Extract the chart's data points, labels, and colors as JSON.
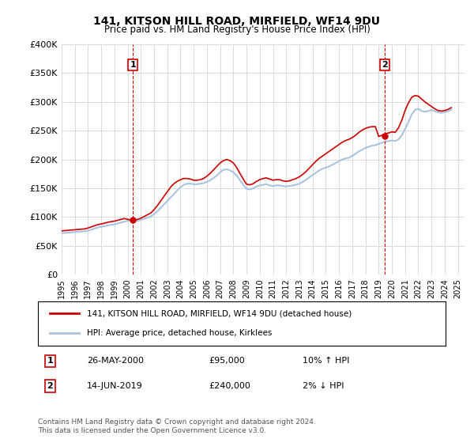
{
  "title1": "141, KITSON HILL ROAD, MIRFIELD, WF14 9DU",
  "title2": "Price paid vs. HM Land Registry's House Price Index (HPI)",
  "ylabel_ticks": [
    "£0",
    "£50K",
    "£100K",
    "£150K",
    "£200K",
    "£250K",
    "£300K",
    "£350K",
    "£400K"
  ],
  "ytick_vals": [
    0,
    50000,
    100000,
    150000,
    200000,
    250000,
    300000,
    350000,
    400000
  ],
  "ylim": [
    0,
    400000
  ],
  "xlim_start": 1995.0,
  "xlim_end": 2025.5,
  "xtick_years": [
    1995,
    1996,
    1997,
    1998,
    1999,
    2000,
    2001,
    2002,
    2003,
    2004,
    2005,
    2006,
    2007,
    2008,
    2009,
    2010,
    2011,
    2012,
    2013,
    2014,
    2015,
    2016,
    2017,
    2018,
    2019,
    2020,
    2021,
    2022,
    2023,
    2024,
    2025
  ],
  "hpi_color": "#aac4e0",
  "price_color": "#cc0000",
  "vline_color": "#cc0000",
  "grid_color": "#dddddd",
  "background_color": "#ffffff",
  "legend_label1": "141, KITSON HILL ROAD, MIRFIELD, WF14 9DU (detached house)",
  "legend_label2": "HPI: Average price, detached house, Kirklees",
  "sale1_year": 2000.4,
  "sale1_price": 95000,
  "sale1_label": "1",
  "sale2_year": 2019.45,
  "sale2_price": 240000,
  "sale2_label": "2",
  "table_row1": [
    "1",
    "26-MAY-2000",
    "£95,000",
    "10% ↑ HPI"
  ],
  "table_row2": [
    "2",
    "14-JUN-2019",
    "£240,000",
    "2% ↓ HPI"
  ],
  "footnote": "Contains HM Land Registry data © Crown copyright and database right 2024.\nThis data is licensed under the Open Government Licence v3.0.",
  "hpi_data_x": [
    1995.0,
    1995.25,
    1995.5,
    1995.75,
    1996.0,
    1996.25,
    1996.5,
    1996.75,
    1997.0,
    1997.25,
    1997.5,
    1997.75,
    1998.0,
    1998.25,
    1998.5,
    1998.75,
    1999.0,
    1999.25,
    1999.5,
    1999.75,
    2000.0,
    2000.25,
    2000.5,
    2000.75,
    2001.0,
    2001.25,
    2001.5,
    2001.75,
    2002.0,
    2002.25,
    2002.5,
    2002.75,
    2003.0,
    2003.25,
    2003.5,
    2003.75,
    2004.0,
    2004.25,
    2004.5,
    2004.75,
    2005.0,
    2005.25,
    2005.5,
    2005.75,
    2006.0,
    2006.25,
    2006.5,
    2006.75,
    2007.0,
    2007.25,
    2007.5,
    2007.75,
    2008.0,
    2008.25,
    2008.5,
    2008.75,
    2009.0,
    2009.25,
    2009.5,
    2009.75,
    2010.0,
    2010.25,
    2010.5,
    2010.75,
    2011.0,
    2011.25,
    2011.5,
    2011.75,
    2012.0,
    2012.25,
    2012.5,
    2012.75,
    2013.0,
    2013.25,
    2013.5,
    2013.75,
    2014.0,
    2014.25,
    2014.5,
    2014.75,
    2015.0,
    2015.25,
    2015.5,
    2015.75,
    2016.0,
    2016.25,
    2016.5,
    2016.75,
    2017.0,
    2017.25,
    2017.5,
    2017.75,
    2018.0,
    2018.25,
    2018.5,
    2018.75,
    2019.0,
    2019.25,
    2019.5,
    2019.75,
    2020.0,
    2020.25,
    2020.5,
    2020.75,
    2021.0,
    2021.25,
    2021.5,
    2021.75,
    2022.0,
    2022.25,
    2022.5,
    2022.75,
    2023.0,
    2023.25,
    2023.5,
    2023.75,
    2024.0,
    2024.25,
    2024.5
  ],
  "hpi_data_y": [
    72000,
    72500,
    73000,
    73500,
    74000,
    74500,
    75000,
    75500,
    76500,
    78000,
    80000,
    82000,
    83000,
    84000,
    85500,
    86500,
    87500,
    89000,
    90500,
    92000,
    93500,
    94000,
    93000,
    93500,
    95000,
    97000,
    99000,
    101000,
    105000,
    110000,
    116000,
    122000,
    128000,
    134000,
    140000,
    146000,
    152000,
    156000,
    158000,
    158000,
    157000,
    157000,
    158000,
    159000,
    161000,
    164000,
    168000,
    172000,
    178000,
    182000,
    183000,
    181000,
    178000,
    172000,
    164000,
    156000,
    149000,
    148000,
    150000,
    153000,
    155000,
    156000,
    157000,
    155000,
    154000,
    155000,
    155000,
    154000,
    153000,
    154000,
    155000,
    156000,
    158000,
    161000,
    165000,
    169000,
    173000,
    177000,
    181000,
    184000,
    186000,
    188000,
    191000,
    194000,
    197000,
    200000,
    202000,
    203000,
    206000,
    210000,
    214000,
    217000,
    220000,
    222000,
    224000,
    225000,
    227000,
    229000,
    231000,
    232000,
    233000,
    232000,
    235000,
    242000,
    253000,
    265000,
    278000,
    286000,
    288000,
    284000,
    283000,
    284000,
    286000,
    284000,
    282000,
    281000,
    282000,
    284000,
    286000
  ],
  "price_data_x": [
    1995.0,
    1995.25,
    1995.5,
    1995.75,
    1996.0,
    1996.25,
    1996.5,
    1996.75,
    1997.0,
    1997.25,
    1997.5,
    1997.75,
    1998.0,
    1998.25,
    1998.5,
    1998.75,
    1999.0,
    1999.25,
    1999.5,
    1999.75,
    2000.0,
    2000.25,
    2000.5,
    2000.75,
    2001.0,
    2001.25,
    2001.5,
    2001.75,
    2002.0,
    2002.25,
    2002.5,
    2002.75,
    2003.0,
    2003.25,
    2003.5,
    2003.75,
    2004.0,
    2004.25,
    2004.5,
    2004.75,
    2005.0,
    2005.25,
    2005.5,
    2005.75,
    2006.0,
    2006.25,
    2006.5,
    2006.75,
    2007.0,
    2007.25,
    2007.5,
    2007.75,
    2008.0,
    2008.25,
    2008.5,
    2008.75,
    2009.0,
    2009.25,
    2009.5,
    2009.75,
    2010.0,
    2010.25,
    2010.5,
    2010.75,
    2011.0,
    2011.25,
    2011.5,
    2011.75,
    2012.0,
    2012.25,
    2012.5,
    2012.75,
    2013.0,
    2013.25,
    2013.5,
    2013.75,
    2014.0,
    2014.25,
    2014.5,
    2014.75,
    2015.0,
    2015.25,
    2015.5,
    2015.75,
    2016.0,
    2016.25,
    2016.5,
    2016.75,
    2017.0,
    2017.25,
    2017.5,
    2017.75,
    2018.0,
    2018.25,
    2018.5,
    2018.75,
    2019.0,
    2019.25,
    2019.5,
    2019.75,
    2020.0,
    2020.25,
    2020.5,
    2020.75,
    2021.0,
    2021.25,
    2021.5,
    2021.75,
    2022.0,
    2022.25,
    2022.5,
    2022.75,
    2023.0,
    2023.25,
    2023.5,
    2023.75,
    2024.0,
    2024.25,
    2024.5
  ],
  "price_data_y": [
    76000,
    76500,
    77000,
    77500,
    78000,
    78500,
    79000,
    79500,
    81000,
    83000,
    85000,
    87000,
    88000,
    89500,
    91000,
    92000,
    93000,
    94500,
    96000,
    97500,
    96000,
    95000,
    95000,
    96000,
    98000,
    101000,
    104000,
    107000,
    113000,
    120000,
    128000,
    136000,
    144000,
    152000,
    158000,
    162000,
    165000,
    167000,
    167000,
    166000,
    164000,
    164000,
    165000,
    167000,
    171000,
    176000,
    182000,
    188000,
    194000,
    198000,
    200000,
    198000,
    194000,
    186000,
    176000,
    166000,
    157000,
    156000,
    158000,
    162000,
    165000,
    167000,
    168000,
    166000,
    164000,
    165000,
    165000,
    163000,
    162000,
    163000,
    165000,
    167000,
    170000,
    174000,
    179000,
    185000,
    191000,
    197000,
    202000,
    206000,
    210000,
    214000,
    218000,
    222000,
    226000,
    230000,
    233000,
    235000,
    238000,
    242000,
    247000,
    251000,
    254000,
    256000,
    257000,
    257000,
    240000,
    242000,
    245000,
    246000,
    248000,
    247000,
    255000,
    268000,
    285000,
    298000,
    308000,
    311000,
    310000,
    305000,
    300000,
    296000,
    292000,
    288000,
    285000,
    284000,
    285000,
    287000,
    290000
  ]
}
